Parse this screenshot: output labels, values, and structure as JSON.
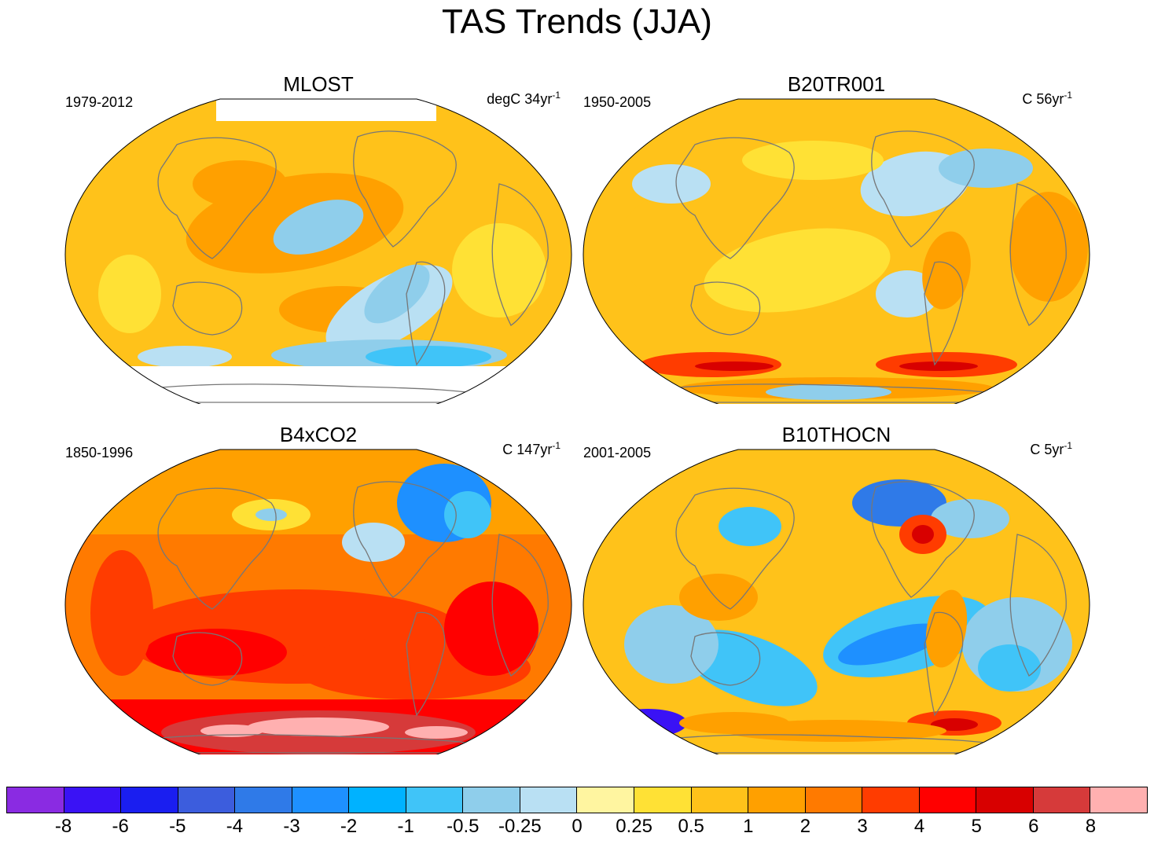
{
  "title": "TAS Trends (JJA)",
  "panels": [
    {
      "name": "MLOST",
      "period": "1979-2012",
      "units": "degC 34yr",
      "units_sup": "-1",
      "theme": "mlost"
    },
    {
      "name": "B20TR001",
      "period": "1950-2005",
      "units": "C 56yr",
      "units_sup": "-1",
      "theme": "warm"
    },
    {
      "name": "B4xCO2",
      "period": "1850-1996",
      "units": "C 147yr",
      "units_sup": "-1",
      "theme": "hot"
    },
    {
      "name": "B10THOCN",
      "period": "2001-2005",
      "units": "C 5yr",
      "units_sup": "-1",
      "theme": "mixed"
    }
  ],
  "colorbar": {
    "colors": [
      "#8a2be2",
      "#3a12f5",
      "#1a1ef0",
      "#3c5ddd",
      "#2f7ae8",
      "#1e90ff",
      "#00b2ff",
      "#40c4f8",
      "#8fceeb",
      "#b9e0f3",
      "#fff5a0",
      "#ffe135",
      "#ffc21a",
      "#ffa000",
      "#ff7a00",
      "#ff3c00",
      "#ff0000",
      "#d80000",
      "#d63a3a",
      "#ffb0b0"
    ],
    "labels": [
      "-8",
      "-6",
      "-5",
      "-4",
      "-3",
      "-2",
      "-1",
      "-0.5",
      "-0.25",
      "0",
      "0.25",
      "0.5",
      "1",
      "2",
      "3",
      "4",
      "5",
      "6",
      "8"
    ]
  }
}
